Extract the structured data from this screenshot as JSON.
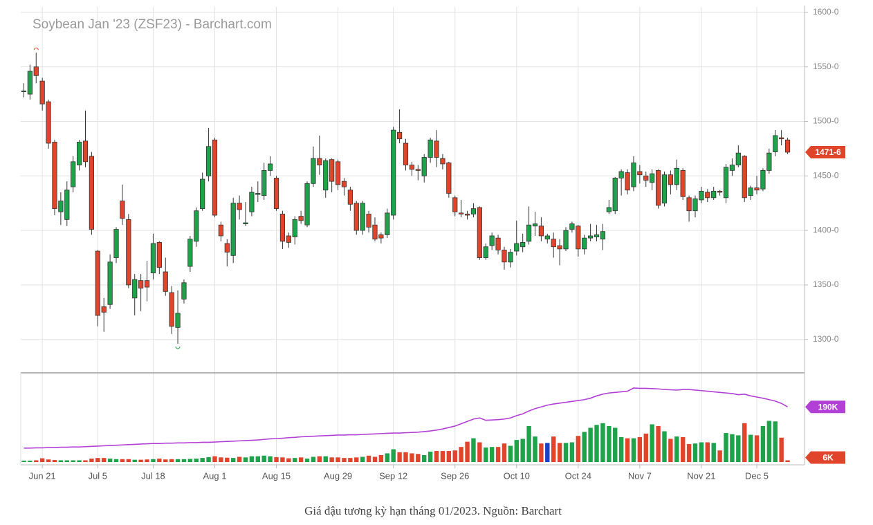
{
  "chart_data": {
    "type": "candlestick",
    "title": "Soybean Jan '23 (ZSF23) - Barchart.com",
    "categories": [
      null,
      null,
      null,
      "Jun 21",
      null,
      null,
      null,
      null,
      null,
      null,
      null,
      null,
      "Jul 5",
      null,
      null,
      null,
      null,
      null,
      null,
      null,
      null,
      "Jul 18",
      null,
      null,
      null,
      null,
      null,
      null,
      null,
      null,
      null,
      "Aug 1",
      null,
      null,
      null,
      null,
      null,
      null,
      null,
      null,
      null,
      "Aug 15",
      null,
      null,
      null,
      null,
      null,
      null,
      null,
      null,
      null,
      "Aug 29",
      null,
      null,
      null,
      null,
      null,
      null,
      null,
      null,
      "Sep 12",
      null,
      null,
      null,
      null,
      null,
      null,
      null,
      null,
      null,
      "Sep 26",
      null,
      null,
      null,
      null,
      null,
      null,
      null,
      null,
      null,
      "Oct 10",
      null,
      null,
      null,
      null,
      null,
      null,
      null,
      null,
      null,
      "Oct 24",
      null,
      null,
      null,
      null,
      null,
      null,
      null,
      null,
      null,
      "Nov 7",
      null,
      null,
      null,
      null,
      null,
      null,
      null,
      null,
      null,
      "Nov 21",
      null,
      null,
      null,
      null,
      null,
      null,
      null,
      null,
      "Dec 5",
      null,
      null,
      null,
      null,
      null
    ],
    "open": [
      1528,
      1525,
      1550,
      1537,
      1518,
      1481,
      1417,
      1410,
      1440,
      1460,
      1482,
      1468,
      1381,
      1330,
      1332,
      1375,
      1427,
      1410,
      1338,
      1354,
      1354,
      1361,
      1389,
      1362,
      1343,
      1311,
      1337,
      1367,
      1390,
      1420,
      1450,
      1483,
      1405,
      1388,
      1377,
      1425,
      1406,
      1417,
      1433,
      1432,
      1455,
      1448,
      1415,
      1395,
      1394,
      1413,
      1405,
      1443,
      1466,
      1437,
      1465,
      1463,
      1445,
      1437,
      1425,
      1400,
      1415,
      1405,
      1396,
      1396,
      1414,
      1490,
      1480,
      1460,
      1456,
      1450,
      1467,
      1482,
      1466,
      1462,
      1430,
      1416,
      1415,
      1415,
      1421,
      1375,
      1386,
      1393,
      1382,
      1371,
      1381,
      1385,
      1390,
      1404,
      1404,
      1392,
      1392,
      1386,
      1383,
      1401,
      1404,
      1383,
      1393,
      1394,
      1392,
      1417,
      1418,
      1448,
      1453,
      1440,
      1454,
      1450,
      1444,
      1455,
      1425,
      1451,
      1442,
      1455,
      1430,
      1418,
      1428,
      1435,
      1430,
      1436,
      1430,
      1455,
      1460,
      1468,
      1432,
      1439,
      1438,
      1455,
      1472,
      1485,
      1483
    ],
    "high": [
      1535,
      1552,
      1563,
      1540,
      1520,
      1483,
      1435,
      1445,
      1468,
      1483,
      1510,
      1472,
      1382,
      1338,
      1378,
      1403,
      1442,
      1415,
      1360,
      1360,
      1372,
      1397,
      1390,
      1375,
      1349,
      1345,
      1355,
      1395,
      1421,
      1453,
      1494,
      1485,
      1408,
      1392,
      1430,
      1432,
      1426,
      1440,
      1445,
      1462,
      1468,
      1450,
      1418,
      1398,
      1413,
      1418,
      1445,
      1477,
      1487,
      1466,
      1466,
      1465,
      1448,
      1440,
      1427,
      1427,
      1418,
      1412,
      1398,
      1420,
      1495,
      1511,
      1484,
      1463,
      1460,
      1470,
      1485,
      1492,
      1470,
      1463,
      1432,
      1428,
      1418,
      1425,
      1422,
      1388,
      1398,
      1396,
      1385,
      1383,
      1409,
      1397,
      1422,
      1417,
      1412,
      1397,
      1398,
      1392,
      1403,
      1408,
      1405,
      1396,
      1406,
      1405,
      1406,
      1428,
      1449,
      1456,
      1456,
      1468,
      1460,
      1454,
      1456,
      1456,
      1454,
      1455,
      1465,
      1457,
      1432,
      1432,
      1440,
      1438,
      1440,
      1437,
      1461,
      1466,
      1478,
      1469,
      1441,
      1450,
      1457,
      1475,
      1492,
      1492,
      1485
    ],
    "low": [
      1522,
      1520,
      1535,
      1510,
      1475,
      1414,
      1405,
      1404,
      1435,
      1455,
      1458,
      1396,
      1312,
      1307,
      1328,
      1370,
      1405,
      1347,
      1322,
      1326,
      1335,
      1355,
      1360,
      1340,
      1305,
      1296,
      1333,
      1362,
      1385,
      1418,
      1445,
      1412,
      1390,
      1367,
      1370,
      1410,
      1404,
      1413,
      1426,
      1428,
      1450,
      1418,
      1383,
      1384,
      1387,
      1406,
      1403,
      1440,
      1451,
      1430,
      1435,
      1437,
      1432,
      1418,
      1396,
      1396,
      1398,
      1390,
      1388,
      1393,
      1410,
      1480,
      1455,
      1450,
      1446,
      1444,
      1462,
      1458,
      1456,
      1430,
      1413,
      1412,
      1410,
      1412,
      1373,
      1373,
      1382,
      1378,
      1364,
      1366,
      1377,
      1380,
      1387,
      1395,
      1390,
      1388,
      1375,
      1368,
      1381,
      1398,
      1376,
      1378,
      1390,
      1390,
      1382,
      1415,
      1415,
      1432,
      1433,
      1436,
      1443,
      1440,
      1437,
      1420,
      1422,
      1433,
      1437,
      1428,
      1408,
      1412,
      1425,
      1426,
      1428,
      1432,
      1425,
      1450,
      1458,
      1426,
      1428,
      1433,
      1436,
      1452,
      1468,
      1478,
      1470
    ],
    "close": [
      1528,
      1546,
      1542,
      1516,
      1480,
      1420,
      1427,
      1437,
      1463,
      1481,
      1463,
      1401,
      1322,
      1325,
      1371,
      1401,
      1411,
      1350,
      1355,
      1347,
      1348,
      1388,
      1366,
      1344,
      1312,
      1324,
      1352,
      1392,
      1418,
      1447,
      1477,
      1414,
      1395,
      1380,
      1425,
      1419,
      1407,
      1435,
      1434,
      1455,
      1461,
      1420,
      1390,
      1389,
      1410,
      1409,
      1443,
      1466,
      1460,
      1464,
      1445,
      1442,
      1440,
      1424,
      1400,
      1425,
      1403,
      1392,
      1393,
      1416,
      1492,
      1484,
      1460,
      1456,
      1455,
      1467,
      1483,
      1467,
      1461,
      1434,
      1417,
      1415,
      1414,
      1420,
      1375,
      1385,
      1395,
      1382,
      1371,
      1380,
      1388,
      1389,
      1405,
      1406,
      1395,
      1395,
      1385,
      1383,
      1400,
      1406,
      1383,
      1393,
      1395,
      1396,
      1399,
      1421,
      1448,
      1454,
      1437,
      1462,
      1451,
      1446,
      1452,
      1423,
      1451,
      1442,
      1457,
      1431,
      1418,
      1429,
      1436,
      1430,
      1436,
      1435,
      1458,
      1460,
      1471,
      1430,
      1439,
      1437,
      1455,
      1471,
      1487,
      1484,
      1471.75
    ],
    "last_close_label": "1471-6",
    "up_color": "#1ea34a",
    "down_color": "#e0452b",
    "unchanged_color": "#1f3fc4",
    "ylim": [
      1270,
      1605
    ],
    "yticks": [
      {
        "value": 1300,
        "label": "1300-0"
      },
      {
        "value": 1350,
        "label": "1350-0"
      },
      {
        "value": 1400,
        "label": "1400-0"
      },
      {
        "value": 1450,
        "label": "1450-0"
      },
      {
        "value": 1500,
        "label": "1500-0"
      },
      {
        "value": 1550,
        "label": "1550-0"
      },
      {
        "value": 1600,
        "label": "1600-0"
      }
    ],
    "grid": true,
    "volume": {
      "values": [
        5,
        5,
        6,
        13,
        9,
        7,
        6,
        6,
        6,
        6,
        6,
        12,
        14,
        14,
        12,
        10,
        10,
        10,
        8,
        8,
        9,
        10,
        12,
        9,
        10,
        10,
        10,
        11,
        12,
        14,
        17,
        20,
        16,
        15,
        14,
        18,
        16,
        20,
        20,
        22,
        20,
        17,
        16,
        13,
        14,
        16,
        12,
        18,
        20,
        20,
        16,
        16,
        14,
        14,
        16,
        18,
        22,
        18,
        24,
        30,
        44,
        34,
        34,
        30,
        28,
        24,
        36,
        38,
        38,
        38,
        40,
        52,
        70,
        82,
        68,
        50,
        52,
        52,
        64,
        56,
        76,
        80,
        124,
        88,
        64,
        66,
        88,
        66,
        66,
        68,
        90,
        104,
        118,
        128,
        134,
        124,
        118,
        86,
        82,
        82,
        86,
        98,
        130,
        124,
        106,
        80,
        88,
        86,
        62,
        64,
        68,
        68,
        66,
        40,
        100,
        96,
        92,
        134,
        94,
        92,
        124,
        142,
        140,
        84,
        6
      ],
      "last_label": "6K",
      "ylim": [
        0,
        305
      ]
    },
    "open_interest": {
      "color": "#b23fd6",
      "values": [
        48,
        48,
        49,
        49,
        50,
        50,
        51,
        51,
        52,
        52,
        53,
        54,
        55,
        56,
        57,
        58,
        59,
        60,
        61,
        62,
        63,
        64,
        64,
        65,
        65,
        66,
        66,
        67,
        67,
        68,
        68,
        69,
        70,
        71,
        72,
        73,
        74,
        75,
        76,
        78,
        80,
        81,
        82,
        84,
        85,
        87,
        88,
        89,
        90,
        91,
        92,
        93,
        93,
        94,
        94,
        95,
        96,
        97,
        98,
        99,
        100,
        100,
        101,
        102,
        103,
        105,
        107,
        110,
        114,
        119,
        124,
        132,
        140,
        148,
        152,
        144,
        145,
        146,
        148,
        152,
        160,
        166,
        176,
        184,
        190,
        196,
        200,
        203,
        206,
        209,
        212,
        215,
        220,
        228,
        234,
        238,
        240,
        242,
        244,
        255,
        254,
        254,
        253,
        252,
        250,
        249,
        248,
        250,
        250,
        248,
        246,
        244,
        242,
        240,
        238,
        236,
        232,
        234,
        228,
        224,
        220,
        215,
        210,
        202,
        190
      ],
      "last_label": "190K"
    }
  },
  "caption": "Giá đậu tương kỳ hạn tháng 01/2023. Nguồn: Barchart"
}
